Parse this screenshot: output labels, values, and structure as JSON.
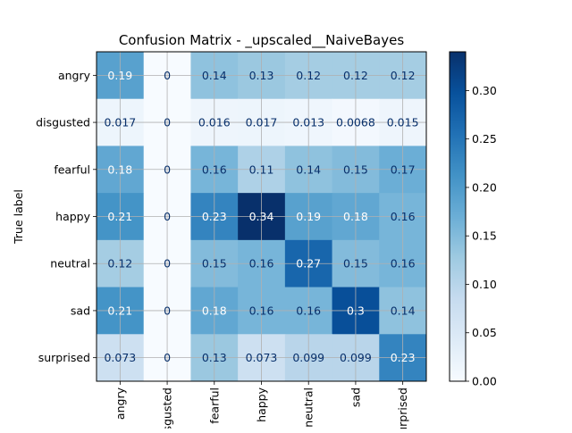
{
  "chart_data": {
    "type": "heatmap",
    "title": "Confusion Matrix - _upscaled__NaiveBayes",
    "ylabel": "True label",
    "xlabel": "",
    "row_labels": [
      "angry",
      "disgusted",
      "fearful",
      "happy",
      "neutral",
      "sad",
      "surprised"
    ],
    "col_labels": [
      "angry",
      "disgusted",
      "fearful",
      "happy",
      "neutral",
      "sad",
      "surprised"
    ],
    "values": [
      [
        0.19,
        0,
        0.14,
        0.13,
        0.12,
        0.12,
        0.12
      ],
      [
        0.017,
        0,
        0.016,
        0.017,
        0.013,
        0.0068,
        0.015
      ],
      [
        0.18,
        0,
        0.16,
        0.11,
        0.14,
        0.15,
        0.17
      ],
      [
        0.21,
        0,
        0.23,
        0.34,
        0.19,
        0.18,
        0.16
      ],
      [
        0.12,
        0,
        0.15,
        0.16,
        0.27,
        0.15,
        0.16
      ],
      [
        0.21,
        0,
        0.18,
        0.16,
        0.16,
        0.3,
        0.14
      ],
      [
        0.073,
        0,
        0.13,
        0.073,
        0.099,
        0.099,
        0.23
      ]
    ],
    "cell_text": [
      [
        "0.19",
        "0",
        "0.14",
        "0.13",
        "0.12",
        "0.12",
        "0.12"
      ],
      [
        "0.017",
        "0",
        "0.016",
        "0.017",
        "0.013",
        "0.0068",
        "0.015"
      ],
      [
        "0.18",
        "0",
        "0.16",
        "0.11",
        "0.14",
        "0.15",
        "0.17"
      ],
      [
        "0.21",
        "0",
        "0.23",
        "0.34",
        "0.19",
        "0.18",
        "0.16"
      ],
      [
        "0.12",
        "0",
        "0.15",
        "0.16",
        "0.27",
        "0.15",
        "0.16"
      ],
      [
        "0.21",
        "0",
        "0.18",
        "0.16",
        "0.16",
        "0.3",
        "0.14"
      ],
      [
        "0.073",
        "0",
        "0.13",
        "0.073",
        "0.099",
        "0.099",
        "0.23"
      ]
    ],
    "colorbar": {
      "range": [
        0,
        0.34
      ],
      "ticks": [
        0.0,
        0.05,
        0.1,
        0.15,
        0.2,
        0.25,
        0.3
      ],
      "tick_labels": [
        "0.00",
        "0.05",
        "0.10",
        "0.15",
        "0.20",
        "0.25",
        "0.30"
      ]
    },
    "colormap": "Blues",
    "grid": true,
    "x_tick_rotation": "vertical"
  }
}
